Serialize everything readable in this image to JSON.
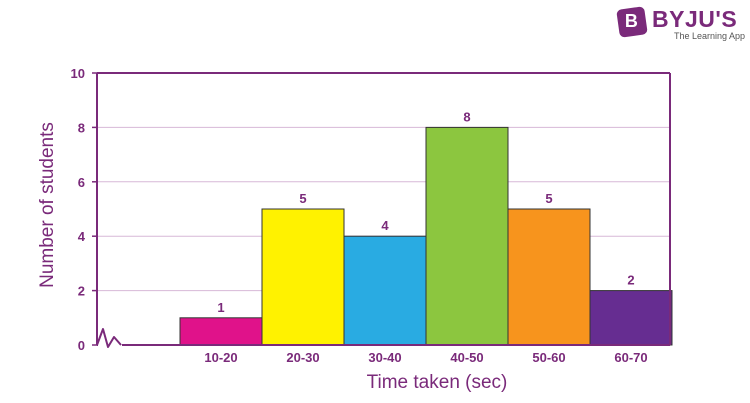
{
  "brand": {
    "name": "BYJU'S",
    "tagline": "The Learning App",
    "color": "#7a2a7a"
  },
  "chart_data": {
    "type": "bar",
    "categories": [
      "10-20",
      "20-30",
      "30-40",
      "40-50",
      "50-60",
      "60-70"
    ],
    "values": [
      1,
      5,
      4,
      8,
      5,
      2
    ],
    "colors": [
      "#e0128a",
      "#fff200",
      "#29abe2",
      "#8cc63f",
      "#f7941d",
      "#662d91"
    ],
    "xlabel": "Time taken (sec)",
    "ylabel": "Number of students",
    "ylim": [
      0,
      10
    ],
    "yticks": [
      "0",
      "2",
      "4",
      "6",
      "8",
      "10"
    ],
    "grid": true,
    "axis_break": true,
    "frame_color": "#7a2a7a",
    "grid_color": "#d7b8d7"
  }
}
